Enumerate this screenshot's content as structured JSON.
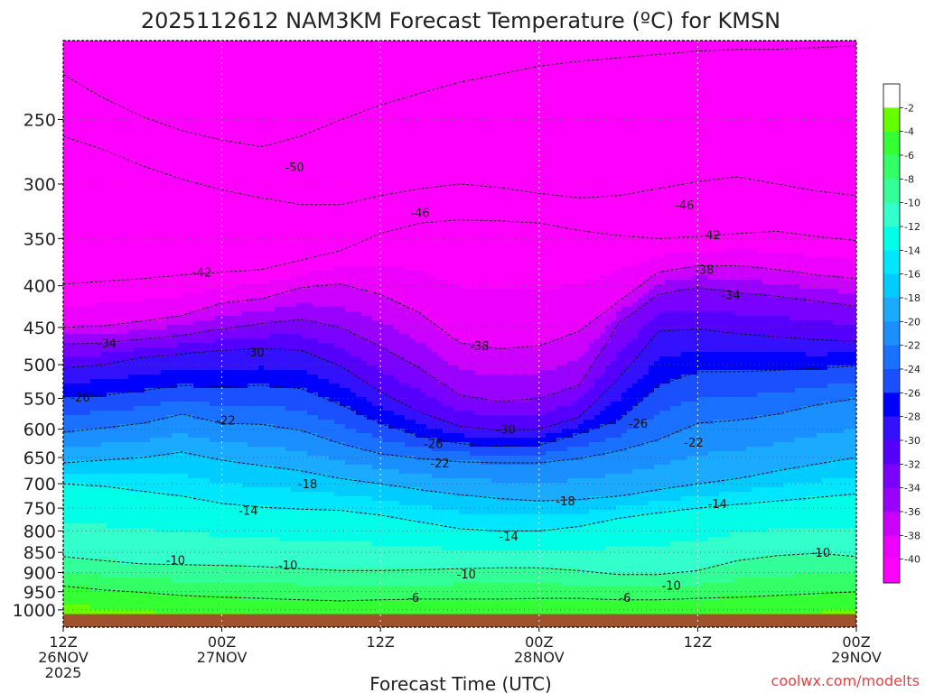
{
  "chart_data": {
    "type": "heatmap",
    "title": "2025112612 NAM3KM Forecast Temperature (ºC) for KMSN",
    "xlabel": "Forecast Time (UTC)",
    "ylabel": "",
    "credit": "coolwx.com/modelts",
    "y_axis": {
      "unit": "hPa",
      "scale": "log",
      "ticks": [
        250,
        300,
        350,
        400,
        450,
        500,
        550,
        600,
        650,
        700,
        750,
        800,
        850,
        900,
        950,
        1000
      ],
      "range": [
        200,
        1050
      ]
    },
    "x_axis": {
      "unit": "hours since 2025-11-26 12Z",
      "range": [
        0,
        60
      ],
      "ticks": [
        {
          "x": 0,
          "lines": [
            "12Z",
            "26NOV",
            "2025"
          ]
        },
        {
          "x": 12,
          "lines": [
            "00Z",
            "27NOV"
          ]
        },
        {
          "x": 24,
          "lines": [
            "12Z"
          ]
        },
        {
          "x": 36,
          "lines": [
            "00Z",
            "28NOV"
          ]
        },
        {
          "x": 48,
          "lines": [
            "12Z"
          ]
        },
        {
          "x": 60,
          "lines": [
            "00Z",
            "29NOV"
          ]
        }
      ]
    },
    "grid": true,
    "colorbar": {
      "placement": "right",
      "levels": [
        -2,
        -4,
        -6,
        -8,
        -10,
        -12,
        -14,
        -16,
        -18,
        -20,
        -22,
        -24,
        -26,
        -28,
        -30,
        -32,
        -34,
        -36,
        -38,
        -40
      ],
      "colors": [
        "#ffffff",
        "#66ff00",
        "#33ff33",
        "#33ff66",
        "#33ff99",
        "#33ffcc",
        "#00ffe6",
        "#00e6ff",
        "#00ccff",
        "#1aaaff",
        "#1a8fff",
        "#1a70ff",
        "#1a50ff",
        "#0000ff",
        "#3311ff",
        "#5500ff",
        "#7a00ff",
        "#9a00ff",
        "#cc00ff",
        "#ee00ff",
        "#ff00ff"
      ]
    },
    "ground_color": "#a0522d",
    "x_samples": [
      0,
      3,
      6,
      9,
      12,
      15,
      18,
      21,
      24,
      27,
      30,
      33,
      36,
      39,
      42,
      45,
      48,
      51,
      54,
      57,
      60
    ],
    "isotherms": [
      {
        "temp": -50,
        "p": [
          220,
          235,
          248,
          258,
          265,
          270,
          262,
          250,
          240,
          232,
          225,
          220,
          215,
          212,
          210,
          208,
          206,
          205,
          205,
          204,
          203
        ]
      },
      {
        "temp": -46,
        "p": [
          262,
          272,
          285,
          296,
          305,
          312,
          318,
          318,
          310,
          304,
          300,
          303,
          308,
          312,
          310,
          304,
          298,
          294,
          300,
          306,
          310
        ]
      },
      {
        "temp": -42,
        "p": [
          398,
          395,
          392,
          388,
          385,
          382,
          372,
          362,
          345,
          335,
          332,
          333,
          335,
          342,
          347,
          350,
          348,
          345,
          343,
          348,
          352
        ]
      },
      {
        "temp": -38,
        "p": [
          450,
          448,
          442,
          435,
          420,
          415,
          402,
          398,
          410,
          432,
          470,
          478,
          474,
          455,
          418,
          385,
          378,
          378,
          382,
          388,
          392
        ]
      },
      {
        "temp": -34,
        "p": [
          472,
          470,
          465,
          460,
          452,
          445,
          440,
          450,
          475,
          505,
          545,
          555,
          550,
          530,
          445,
          410,
          402,
          408,
          412,
          418,
          424
        ]
      },
      {
        "temp": -30,
        "p": [
          505,
          500,
          490,
          485,
          480,
          478,
          480,
          502,
          540,
          572,
          595,
          602,
          600,
          580,
          520,
          455,
          452,
          458,
          462,
          466,
          468
        ]
      },
      {
        "temp": -26,
        "p": [
          548,
          545,
          538,
          530,
          532,
          530,
          535,
          560,
          590,
          612,
          625,
          630,
          628,
          608,
          585,
          530,
          510,
          510,
          508,
          505,
          502
        ]
      },
      {
        "temp": -22,
        "p": [
          605,
          598,
          590,
          575,
          590,
          592,
          602,
          625,
          643,
          652,
          658,
          660,
          660,
          652,
          638,
          618,
          590,
          585,
          575,
          560,
          550
        ]
      },
      {
        "temp": -18,
        "p": [
          660,
          655,
          650,
          640,
          655,
          665,
          675,
          690,
          700,
          712,
          722,
          730,
          735,
          732,
          725,
          712,
          700,
          690,
          675,
          662,
          650
        ]
      },
      {
        "temp": -14,
        "p": [
          700,
          705,
          715,
          725,
          740,
          748,
          752,
          755,
          765,
          780,
          795,
          800,
          800,
          790,
          772,
          760,
          750,
          742,
          735,
          728,
          720
        ]
      },
      {
        "temp": -10,
        "p": [
          860,
          870,
          878,
          880,
          882,
          885,
          890,
          895,
          895,
          893,
          890,
          888,
          888,
          895,
          905,
          905,
          895,
          870,
          858,
          852,
          860
        ]
      },
      {
        "temp": -6,
        "p": [
          935,
          945,
          952,
          960,
          965,
          968,
          972,
          975,
          972,
          970,
          970,
          970,
          968,
          968,
          972,
          972,
          968,
          965,
          960,
          955,
          950
        ]
      }
    ],
    "contour_labels": [
      {
        "text": "-50",
        "x": 17.5,
        "p": 286
      },
      {
        "text": "-46",
        "x": 27.0,
        "p": 325
      },
      {
        "text": "-46",
        "x": 47.0,
        "p": 318
      },
      {
        "text": "-42",
        "x": 10.5,
        "p": 385
      },
      {
        "text": "-42",
        "x": 49.0,
        "p": 346
      },
      {
        "text": "-38",
        "x": 31.5,
        "p": 474
      },
      {
        "text": "-38",
        "x": 48.5,
        "p": 382
      },
      {
        "text": "-34",
        "x": 3.3,
        "p": 470
      },
      {
        "text": "-34",
        "x": 50.5,
        "p": 410
      },
      {
        "text": "-30",
        "x": 14.5,
        "p": 482
      },
      {
        "text": "-30",
        "x": 33.5,
        "p": 600
      },
      {
        "text": "-26",
        "x": 1.3,
        "p": 548
      },
      {
        "text": "-26",
        "x": 28.0,
        "p": 625
      },
      {
        "text": "-26",
        "x": 43.5,
        "p": 590
      },
      {
        "text": "-22",
        "x": 12.3,
        "p": 585
      },
      {
        "text": "-22",
        "x": 28.5,
        "p": 660
      },
      {
        "text": "-22",
        "x": 47.7,
        "p": 622
      },
      {
        "text": "-18",
        "x": 18.5,
        "p": 700
      },
      {
        "text": "-18",
        "x": 38.0,
        "p": 735
      },
      {
        "text": "-14",
        "x": 14.0,
        "p": 755
      },
      {
        "text": "-14",
        "x": 33.7,
        "p": 812
      },
      {
        "text": "-14",
        "x": 49.5,
        "p": 740
      },
      {
        "text": "-10",
        "x": 8.5,
        "p": 868
      },
      {
        "text": "-10",
        "x": 17.0,
        "p": 880
      },
      {
        "text": "-10",
        "x": 30.5,
        "p": 903
      },
      {
        "text": "-10",
        "x": 46.0,
        "p": 932
      },
      {
        "text": "-10",
        "x": 57.3,
        "p": 850
      },
      {
        "text": "-6",
        "x": 26.5,
        "p": 965
      },
      {
        "text": "-6",
        "x": 42.5,
        "p": 965
      }
    ]
  }
}
